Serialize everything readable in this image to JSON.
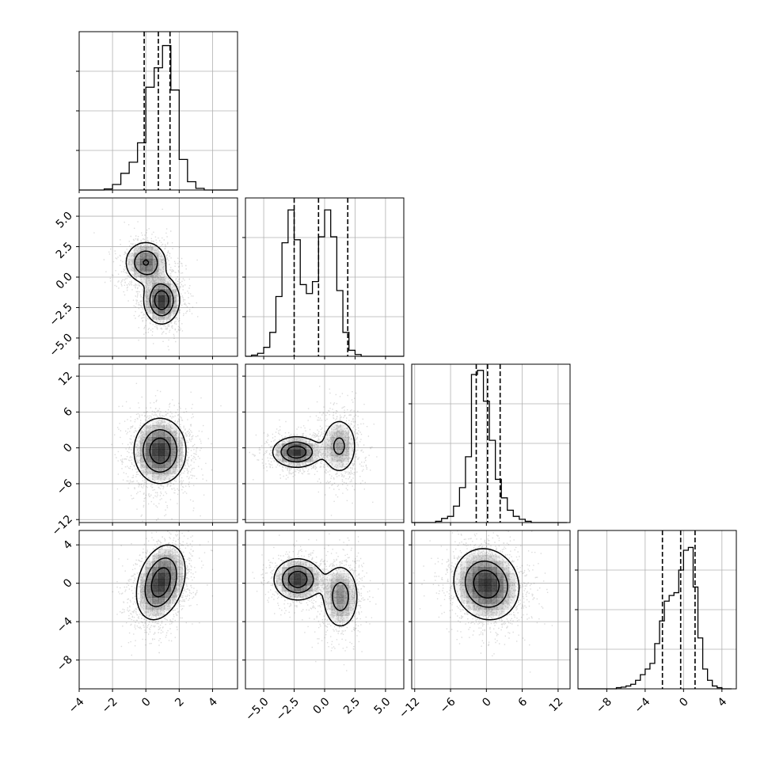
{
  "chart_data": {
    "type": "corner",
    "title": "",
    "grid": true,
    "params": [
      {
        "range": [
          -4,
          5.5
        ],
        "ticks": [
          -4,
          -2,
          0,
          2,
          4
        ],
        "tick_labels": [
          "−4",
          "−2",
          "0",
          "2",
          "4"
        ],
        "hist": {
          "edges": [
            -4,
            -3.5,
            -3,
            -2.5,
            -2,
            -1.5,
            -1,
            -0.5,
            0,
            0.5,
            1,
            1.5,
            2,
            2.5,
            3,
            3.5,
            4,
            4.5,
            5,
            5.5
          ],
          "counts": [
            0,
            0,
            0,
            0.2,
            1,
            3,
            5,
            8.5,
            18.5,
            22,
            26,
            18,
            5.5,
            1.5,
            0.3,
            0,
            0,
            0,
            0
          ],
          "ymax": 28.5
        },
        "quantiles": [
          -0.1,
          0.75,
          1.45
        ]
      },
      {
        "range": [
          -6.5,
          6.5
        ],
        "ticks": [
          -5,
          -2.5,
          0,
          2.5,
          5
        ],
        "tick_labels": [
          "−5.0",
          "−2.5",
          "0.0",
          "2.5",
          "5.0"
        ],
        "hist": {
          "edges": [
            -6.5,
            -6,
            -5.5,
            -5,
            -4.5,
            -4,
            -3.5,
            -3,
            -2.5,
            -2,
            -1.5,
            -1,
            -0.5,
            0,
            0.5,
            1,
            1.5,
            2,
            2.5,
            3,
            3.5,
            4,
            4.5,
            5,
            5.5,
            6,
            6.5
          ],
          "counts": [
            0,
            0.2,
            0.5,
            1.5,
            4,
            10,
            19,
            24.5,
            19.5,
            12,
            10.5,
            12.5,
            20,
            24.5,
            20,
            11,
            4,
            1,
            0.3,
            0,
            0,
            0,
            0,
            0,
            0,
            0
          ],
          "ymax": 26.5
        },
        "quantiles": [
          -2.5,
          -0.5,
          1.9
        ]
      },
      {
        "range": [
          -12.5,
          14
        ],
        "ticks": [
          -12,
          -6,
          0,
          6,
          12
        ],
        "tick_labels": [
          "−12",
          "−6",
          "0",
          "6",
          "12"
        ],
        "hist": {
          "edges": [
            -12.5,
            -11.5,
            -10.5,
            -9.5,
            -8.5,
            -7.5,
            -6.5,
            -5.5,
            -4.5,
            -3.5,
            -2.5,
            -1.5,
            -0.5,
            0.5,
            1.5,
            2.5,
            3.5,
            4.5,
            5.5,
            6.5,
            7.5,
            8.5,
            9.5,
            10.5,
            11.5,
            12.5,
            13.5
          ],
          "counts": [
            0,
            0,
            0,
            0,
            0.3,
            1,
            1.5,
            4,
            8.5,
            16,
            36,
            37,
            29.5,
            20,
            10.5,
            6,
            3,
            1.5,
            0.8,
            0.3,
            0,
            0,
            0,
            0,
            0,
            0
          ],
          "ymax": 38.5
        },
        "quantiles": [
          -1.7,
          0.2,
          2.3
        ]
      },
      {
        "range": [
          -11,
          5.5
        ],
        "ticks": [
          -8,
          -4,
          0,
          4
        ],
        "tick_labels": [
          "−8",
          "−4",
          "0",
          "4"
        ],
        "hist": {
          "edges": [
            -11,
            -10.5,
            -10,
            -9.5,
            -9,
            -8.5,
            -8,
            -7.5,
            -7,
            -6.5,
            -6,
            -5.5,
            -5,
            -4.5,
            -4,
            -3.5,
            -3,
            -2.5,
            -2,
            -1.5,
            -1,
            -0.5,
            0,
            0.5,
            1,
            1.5,
            2,
            2.5,
            3,
            3.5,
            4,
            4.5,
            5
          ],
          "counts": [
            0,
            0,
            0,
            0,
            0,
            0,
            0,
            0,
            0.2,
            0.3,
            0.5,
            0.8,
            1.5,
            2.5,
            3.5,
            4.5,
            8,
            12,
            15.5,
            16.5,
            17,
            21,
            24.5,
            25,
            18,
            9,
            3.5,
            1.5,
            0.5,
            0.2,
            0,
            0
          ],
          "ymax": 28
        },
        "quantiles": [
          -2.2,
          -0.3,
          1.2
        ]
      }
    ],
    "pairs": [
      {
        "row": 1,
        "col": 0,
        "modes": [
          {
            "mx": 0.0,
            "my": 1.2,
            "sx": 0.65,
            "sy": 0.9,
            "w": 0.45,
            "rho": 0.0
          },
          {
            "mx": 0.95,
            "my": -1.9,
            "sx": 0.55,
            "sy": 1.0,
            "w": 0.55,
            "rho": 0.0
          }
        ],
        "levels": [
          0.15,
          0.45,
          0.75
        ],
        "n_points": 1800
      },
      {
        "row": 2,
        "col": 0,
        "modes": [
          {
            "mx": 0.85,
            "my": -0.5,
            "sx": 0.8,
            "sy": 2.8,
            "w": 1.0,
            "rho": 0.0
          }
        ],
        "levels": [
          0.15,
          0.45,
          0.75
        ],
        "n_points": 1800
      },
      {
        "row": 2,
        "col": 1,
        "modes": [
          {
            "mx": -2.3,
            "my": -0.7,
            "sx": 1.0,
            "sy": 1.3,
            "w": 0.55,
            "rho": 0.0
          },
          {
            "mx": 1.2,
            "my": 0.3,
            "sx": 0.8,
            "sy": 2.6,
            "w": 0.45,
            "rho": 0.0
          }
        ],
        "levels": [
          0.15,
          0.45,
          0.75
        ],
        "n_points": 1800
      },
      {
        "row": 3,
        "col": 0,
        "modes": [
          {
            "mx": 0.9,
            "my": 0.1,
            "sx": 0.75,
            "sy": 2.0,
            "w": 1.0,
            "rho": 0.3
          }
        ],
        "levels": [
          0.15,
          0.45,
          0.75
        ],
        "n_points": 1800
      },
      {
        "row": 3,
        "col": 1,
        "modes": [
          {
            "mx": -2.2,
            "my": 0.4,
            "sx": 1.0,
            "sy": 1.1,
            "w": 0.55,
            "rho": 0.0
          },
          {
            "mx": 1.3,
            "my": -1.4,
            "sx": 0.8,
            "sy": 1.8,
            "w": 0.45,
            "rho": 0.0
          }
        ],
        "levels": [
          0.15,
          0.45,
          0.75
        ],
        "n_points": 1800
      },
      {
        "row": 3,
        "col": 2,
        "modes": [
          {
            "mx": 0.0,
            "my": -0.1,
            "sx": 2.8,
            "sy": 1.9,
            "w": 1.0,
            "rho": -0.1
          }
        ],
        "levels": [
          0.15,
          0.45,
          0.75
        ],
        "n_points": 1800
      }
    ]
  }
}
